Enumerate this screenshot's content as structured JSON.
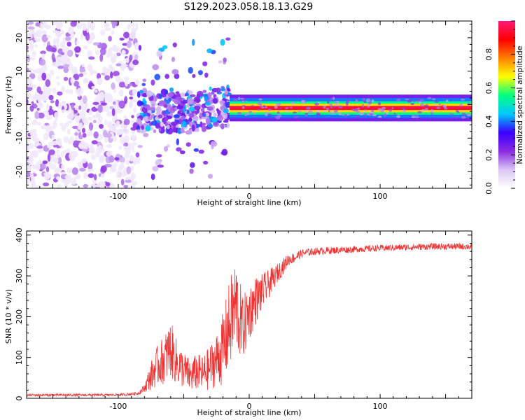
{
  "figure": {
    "title": "S129.2023.058.18.13.G29"
  },
  "chart_data": [
    {
      "type": "heatmap",
      "title": "",
      "xlabel": "Height of straight line (km)",
      "ylabel": "Frequency (Hz)",
      "xlim": [
        -170,
        170
      ],
      "ylim": [
        -25,
        25
      ],
      "xticks": [
        -100,
        0,
        100
      ],
      "yticks": [
        -20,
        -10,
        0,
        10,
        20
      ],
      "colorbar": {
        "label": "Normalized spectral amplitude",
        "range": [
          0,
          1
        ],
        "ticks": [
          0.0,
          0.2,
          0.4,
          0.6,
          0.8
        ],
        "colormap": [
          "#ffffff",
          "#d9c6f5",
          "#8a2be2",
          "#3a00ff",
          "#00c8ff",
          "#00ff80",
          "#ffff00",
          "#ff8000",
          "#ff0000",
          "#ff1a7a"
        ]
      },
      "features": [
        {
          "region": "noise",
          "x_range": [
            -170,
            -85
          ],
          "freq_range": [
            -25,
            25
          ],
          "amplitude": 0.12
        },
        {
          "region": "transition",
          "x_range": [
            -85,
            -15
          ],
          "freq_center": -2,
          "freq_spread": 6,
          "amplitude": 0.25
        },
        {
          "region": "tone",
          "x_range": [
            -15,
            170
          ],
          "freq": -1,
          "amplitude": 0.95
        }
      ]
    },
    {
      "type": "line",
      "title": "",
      "xlabel": "Height of straight line (km)",
      "ylabel": "SNR (10 * v/v)",
      "xlim": [
        -170,
        170
      ],
      "ylim": [
        0,
        410
      ],
      "xticks": [
        -100,
        0,
        100
      ],
      "yticks": [
        0,
        100,
        200,
        300,
        400
      ],
      "color": "#ee3333",
      "series": [
        {
          "x": [
            -170,
            -150,
            -130,
            -110,
            -95,
            -85,
            -80,
            -75,
            -70,
            -65,
            -60,
            -55,
            -50,
            -45,
            -40,
            -35,
            -30,
            -25,
            -20,
            -15,
            -10,
            -5,
            0,
            5,
            10,
            15,
            20,
            25,
            30,
            35,
            40,
            50,
            60,
            80,
            100,
            120,
            140,
            160,
            170
          ],
          "values": [
            8,
            8,
            8,
            8,
            9,
            12,
            25,
            55,
            80,
            95,
            120,
            85,
            70,
            55,
            65,
            60,
            75,
            95,
            120,
            180,
            230,
            170,
            210,
            240,
            260,
            280,
            300,
            320,
            340,
            345,
            355,
            360,
            362,
            365,
            368,
            370,
            372,
            372,
            372
          ],
          "noise": [
            3,
            3,
            3,
            3,
            3,
            4,
            10,
            35,
            50,
            60,
            70,
            55,
            45,
            40,
            45,
            45,
            55,
            65,
            90,
            110,
            120,
            80,
            70,
            60,
            45,
            35,
            25,
            20,
            15,
            12,
            10,
            9,
            9,
            8,
            8,
            8,
            8,
            8,
            8
          ]
        }
      ]
    }
  ]
}
